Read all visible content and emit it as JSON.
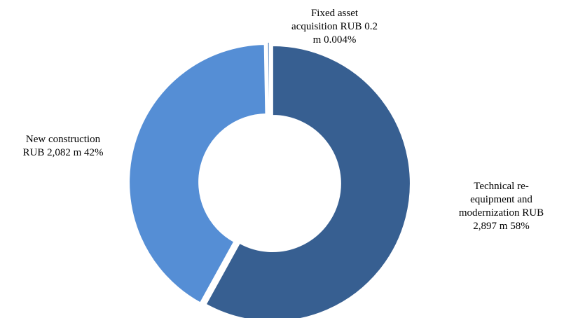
{
  "chart_data": {
    "type": "pie",
    "subtype": "donut",
    "categories": [
      "Technical re-equipment and modernization",
      "New construction",
      "Fixed asset acquisition"
    ],
    "values_rub_m": [
      2897,
      2082,
      0.2
    ],
    "percent_labels": [
      "58%",
      "42%",
      "0.004%"
    ],
    "colors": [
      "#375f91",
      "#558ed5",
      "#7a9fcc"
    ],
    "start_angle_deg": 0,
    "direction": "clockwise",
    "labels": {
      "tech": "Technical re-\nequipment and\nmodernization RUB\n2,897 m 58%",
      "newc": "New construction\nRUB 2,082 m 42%",
      "fixed": "Fixed asset\nacquisition RUB 0.2\nm 0.004%"
    },
    "legend": "none"
  }
}
